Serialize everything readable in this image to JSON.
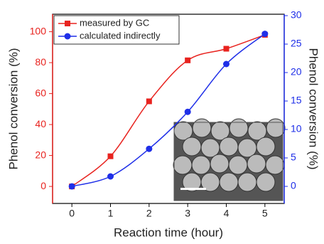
{
  "chart_data": {
    "type": "line",
    "x_label": "Reaction time (hour)",
    "y_label": "Phenol conversion (%)",
    "y2_label": "Phenol conversion (%)",
    "x": [
      0,
      1,
      2,
      3,
      4,
      5
    ],
    "xlim": [
      -0.5,
      5.5
    ],
    "xticks": [
      0,
      1,
      2,
      3,
      4,
      5
    ],
    "ylim": [
      -11,
      111.3
    ],
    "yticks": [
      0,
      20,
      40,
      60,
      80,
      100
    ],
    "y2lim": [
      -3,
      30.25
    ],
    "y2ticks": [
      0,
      5,
      10,
      15,
      20,
      25,
      30
    ],
    "legend": "upper left",
    "series": [
      {
        "name": "measured by GC",
        "color": "#e8231f",
        "marker": "square",
        "values": [
          0,
          19.5,
          55,
          81.5,
          89,
          98
        ]
      },
      {
        "name": "calculated indirectly",
        "color": "#1f2fe8",
        "marker": "circle",
        "axis": "y2",
        "values": [
          0,
          1.75,
          6.6,
          13.1,
          21.5,
          26.8
        ]
      }
    ]
  }
}
